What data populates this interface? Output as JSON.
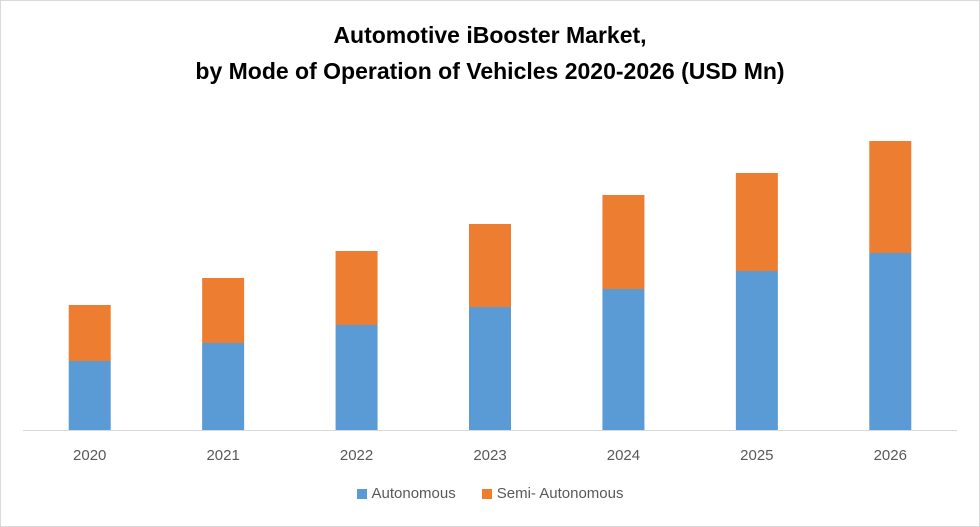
{
  "chart_data": {
    "type": "bar",
    "stacked": true,
    "title_lines": [
      "Automotive iBooster Market,",
      "by Mode of Operation of Vehicles 2020-2026 (USD Mn)"
    ],
    "categories": [
      "2020",
      "2021",
      "2022",
      "2023",
      "2024",
      "2025",
      "2026"
    ],
    "series": [
      {
        "name": "Autonomous",
        "color": "#5b9bd5",
        "values": [
          69,
          87,
          105,
          123,
          141,
          159,
          177
        ]
      },
      {
        "name": "Semi- Autonomous",
        "color": "#ed7d31",
        "values": [
          56,
          65,
          74,
          83,
          94,
          98,
          112
        ]
      }
    ],
    "ylim": [
      0,
      300
    ],
    "y_axis_visible": false,
    "grid": false,
    "legend_position": "bottom"
  }
}
